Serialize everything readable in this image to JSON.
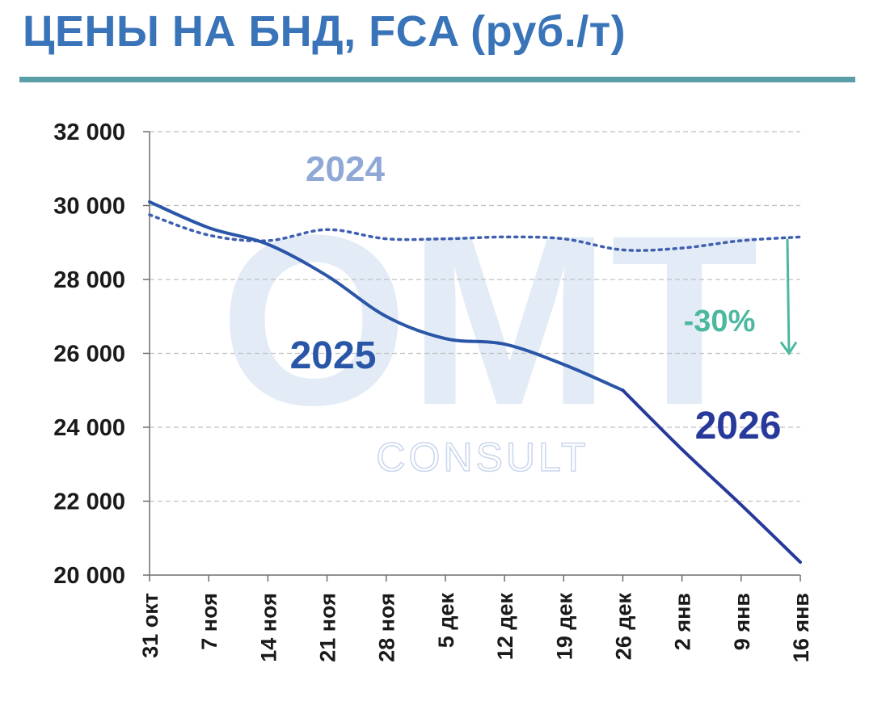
{
  "title": "ЦЕНЫ НА БНД, FCA (руб./т)",
  "watermark": {
    "main": "OMT",
    "sub": "CONSULT"
  },
  "colors": {
    "title": "#3a74b8",
    "rule": "#5a9ea8",
    "s2024": "#3f5fb0",
    "label2024": "#8fa8d6",
    "s2025": "#2a56a8",
    "s2026": "#27399a",
    "annotation": "#4db8a0"
  },
  "chart_data": {
    "type": "line",
    "categories": [
      "31 окт",
      "7 ноя",
      "14 ноя",
      "21 ноя",
      "28 ноя",
      "5 дек",
      "12 дек",
      "19 дек",
      "26 дек",
      "2 янв",
      "9 янв",
      "16 янв"
    ],
    "yticks": [
      20000,
      22000,
      24000,
      26000,
      28000,
      30000,
      32000
    ],
    "ytick_labels": [
      "20 000",
      "22 000",
      "24 000",
      "26 000",
      "28 000",
      "30 000",
      "32 000"
    ],
    "ylim": [
      20000,
      32000
    ],
    "grid": "horizontal dashed",
    "series": [
      {
        "name": "2024",
        "style": "dotted",
        "values": [
          29750,
          29200,
          29050,
          29350,
          29100,
          29100,
          29150,
          29100,
          28800,
          28850,
          29050,
          29150
        ]
      },
      {
        "name": "2025",
        "style": "solid",
        "values": [
          30100,
          29400,
          28950,
          28100,
          27000,
          26400,
          26250,
          25700,
          25000,
          null,
          null,
          null
        ]
      },
      {
        "name": "2026",
        "style": "solid",
        "values": [
          null,
          null,
          null,
          null,
          null,
          null,
          null,
          null,
          25000,
          23400,
          21900,
          20350
        ]
      }
    ],
    "annotation": {
      "text": "-30%",
      "from": 29100,
      "to": 26000
    }
  }
}
